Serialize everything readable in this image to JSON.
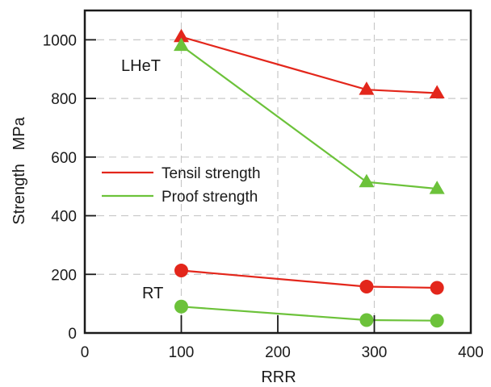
{
  "chart_data": {
    "type": "line",
    "xlabel": "RRR",
    "ylabel": "Strength   MPa",
    "xlim": [
      0,
      400
    ],
    "ylim": [
      0,
      1100
    ],
    "xticks": [
      0,
      100,
      200,
      300,
      400
    ],
    "yticks": [
      0,
      200,
      400,
      600,
      800,
      1000
    ],
    "grid": true,
    "legend": [
      "Tensil strength",
      "Proof strength"
    ],
    "legend_position": "center-left",
    "colors": {
      "tensile": "#e3261b",
      "proof": "#6cc23a"
    },
    "groups": [
      {
        "label": "LHeT",
        "marker": "triangle",
        "series": [
          {
            "name": "Tensil strength",
            "color": "#e3261b",
            "x": [
              100,
              292,
              365
            ],
            "y": [
              1010,
              830,
              818
            ]
          },
          {
            "name": "Proof strength",
            "color": "#6cc23a",
            "x": [
              100,
              292,
              365
            ],
            "y": [
              980,
              515,
              492
            ]
          }
        ]
      },
      {
        "label": "RT",
        "marker": "circle",
        "series": [
          {
            "name": "Tensil strength",
            "color": "#e3261b",
            "x": [
              100,
              292,
              365
            ],
            "y": [
              213,
              158,
              154
            ]
          },
          {
            "name": "Proof strength",
            "color": "#6cc23a",
            "x": [
              100,
              292,
              365
            ],
            "y": [
              90,
              44,
              42
            ]
          }
        ]
      }
    ]
  }
}
